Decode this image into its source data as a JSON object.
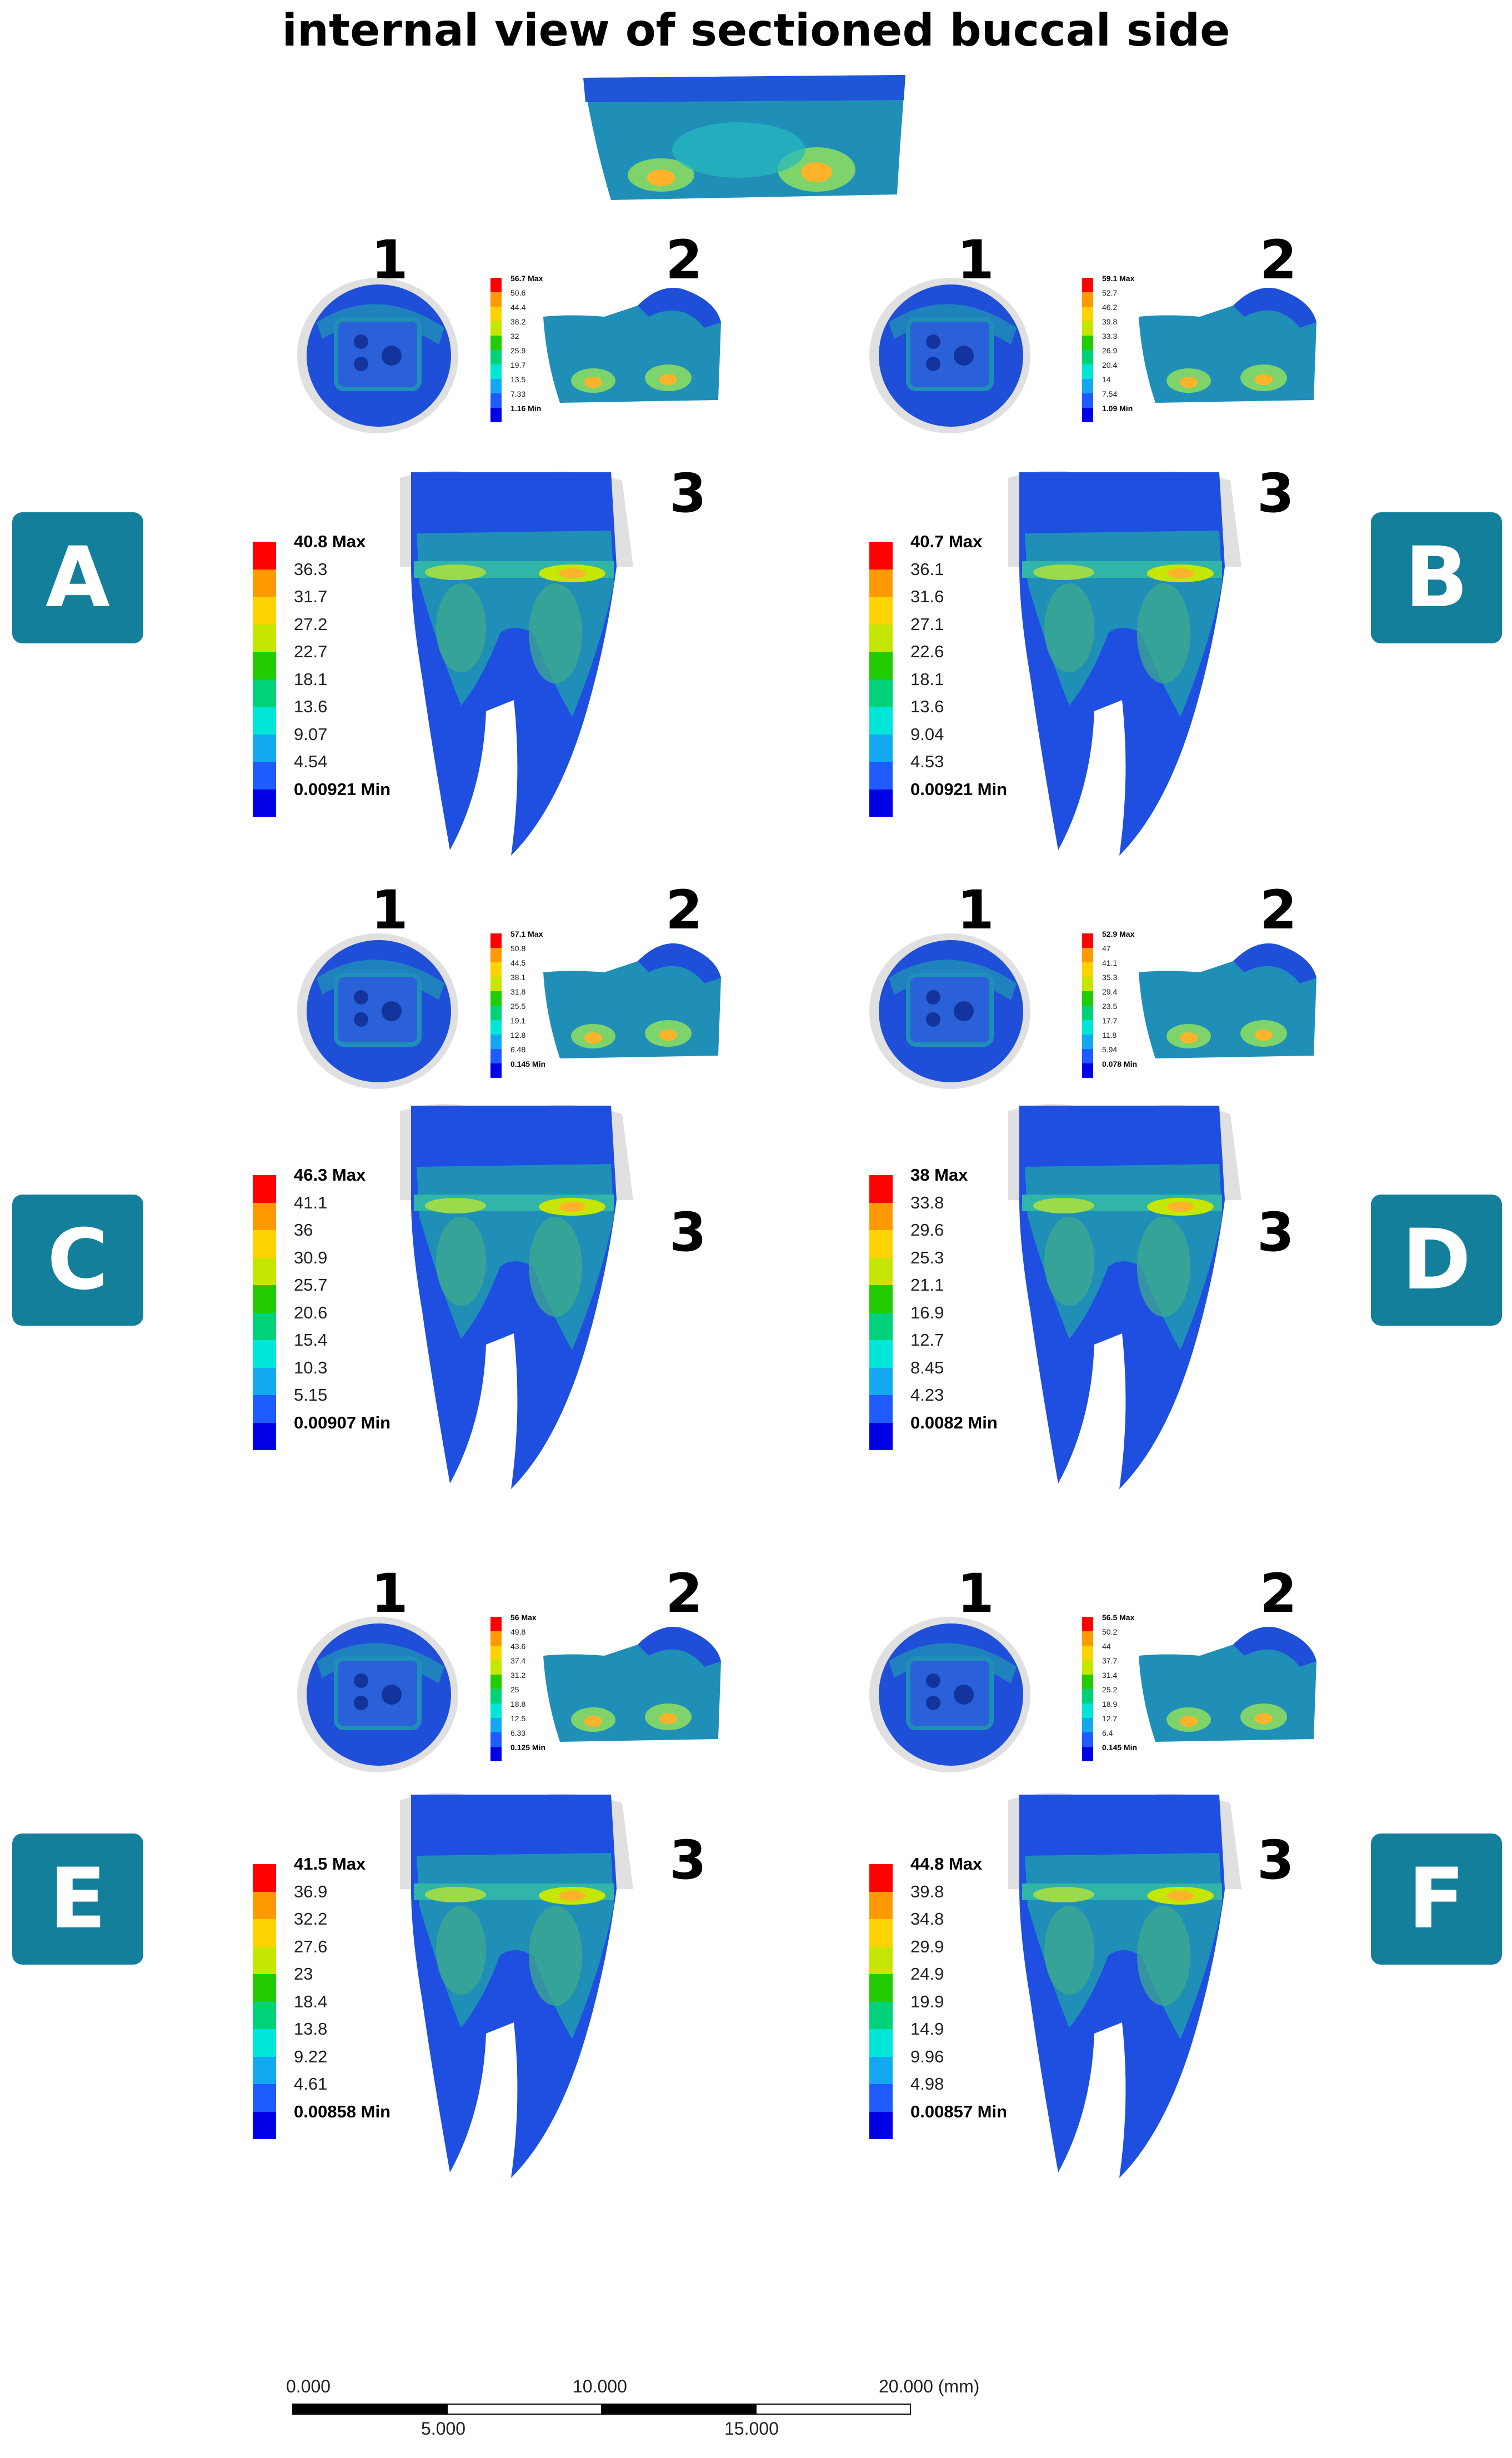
{
  "title": "internal view of sectioned buccal side",
  "colors": {
    "badge": "#147f9a",
    "ramp": [
      "#ff0000",
      "#ff9900",
      "#ffd300",
      "#c5e600",
      "#22cc00",
      "#00d27a",
      "#00e6d9",
      "#14a8f0",
      "#1e5cff",
      "#0000e6"
    ],
    "tooth": "#1e4fe0",
    "ghost": "#e0e0e0"
  },
  "panels": [
    {
      "id": "A",
      "view1": "1",
      "view2": "2",
      "view3": "3",
      "small_legend": {
        "max": "56.7 Max",
        "ticks": [
          "50.6",
          "44.4",
          "38.2",
          "32",
          "25.9",
          "19.7",
          "13.5",
          "7.33"
        ],
        "min": "1.16 Min"
      },
      "legend": {
        "max": "40.8 Max",
        "ticks": [
          "36.3",
          "31.7",
          "27.2",
          "22.7",
          "18.1",
          "13.6",
          "9.07",
          "4.54"
        ],
        "min": "0.00921 Min"
      }
    },
    {
      "id": "B",
      "view1": "1",
      "view2": "2",
      "view3": "3",
      "small_legend": {
        "max": "59.1 Max",
        "ticks": [
          "52.7",
          "46.2",
          "39.8",
          "33.3",
          "26.9",
          "20.4",
          "14",
          "7.54"
        ],
        "min": "1.09 Min"
      },
      "legend": {
        "max": "40.7 Max",
        "ticks": [
          "36.1",
          "31.6",
          "27.1",
          "22.6",
          "18.1",
          "13.6",
          "9.04",
          "4.53"
        ],
        "min": "0.00921 Min"
      }
    },
    {
      "id": "C",
      "view1": "1",
      "view2": "2",
      "view3": "3",
      "small_legend": {
        "max": "57.1 Max",
        "ticks": [
          "50.8",
          "44.5",
          "38.1",
          "31.8",
          "25.5",
          "19.1",
          "12.8",
          "6.48"
        ],
        "min": "0.145 Min"
      },
      "legend": {
        "max": "46.3 Max",
        "ticks": [
          "41.1",
          "36",
          "30.9",
          "25.7",
          "20.6",
          "15.4",
          "10.3",
          "5.15"
        ],
        "min": "0.00907 Min"
      }
    },
    {
      "id": "D",
      "view1": "1",
      "view2": "2",
      "view3": "3",
      "small_legend": {
        "max": "52.9 Max",
        "ticks": [
          "47",
          "41.1",
          "35.3",
          "29.4",
          "23.5",
          "17.7",
          "11.8",
          "5.94"
        ],
        "min": "0.078 Min"
      },
      "legend": {
        "max": "38 Max",
        "ticks": [
          "33.8",
          "29.6",
          "25.3",
          "21.1",
          "16.9",
          "12.7",
          "8.45",
          "4.23"
        ],
        "min": "0.0082 Min"
      }
    },
    {
      "id": "E",
      "view1": "1",
      "view2": "2",
      "view3": "3",
      "small_legend": {
        "max": "56 Max",
        "ticks": [
          "49.8",
          "43.6",
          "37.4",
          "31.2",
          "25",
          "18.8",
          "12.5",
          "6.33"
        ],
        "min": "0.125 Min"
      },
      "legend": {
        "max": "41.5 Max",
        "ticks": [
          "36.9",
          "32.2",
          "27.6",
          "23",
          "18.4",
          "13.8",
          "9.22",
          "4.61"
        ],
        "min": "0.00858 Min"
      }
    },
    {
      "id": "F",
      "view1": "1",
      "view2": "2",
      "view3": "3",
      "small_legend": {
        "max": "56.5 Max",
        "ticks": [
          "50.2",
          "44",
          "37.7",
          "31.4",
          "25.2",
          "18.9",
          "12.7",
          "6.4"
        ],
        "min": "0.145 Min"
      },
      "legend": {
        "max": "44.8 Max",
        "ticks": [
          "39.8",
          "34.8",
          "29.9",
          "24.9",
          "19.9",
          "14.9",
          "9.96",
          "4.98"
        ],
        "min": "0.00857 Min"
      }
    }
  ],
  "scale_bar": {
    "top_labels": [
      "0.000",
      "10.000",
      "20.000 (mm)"
    ],
    "bottom_labels": [
      "5.000",
      "15.000"
    ]
  }
}
